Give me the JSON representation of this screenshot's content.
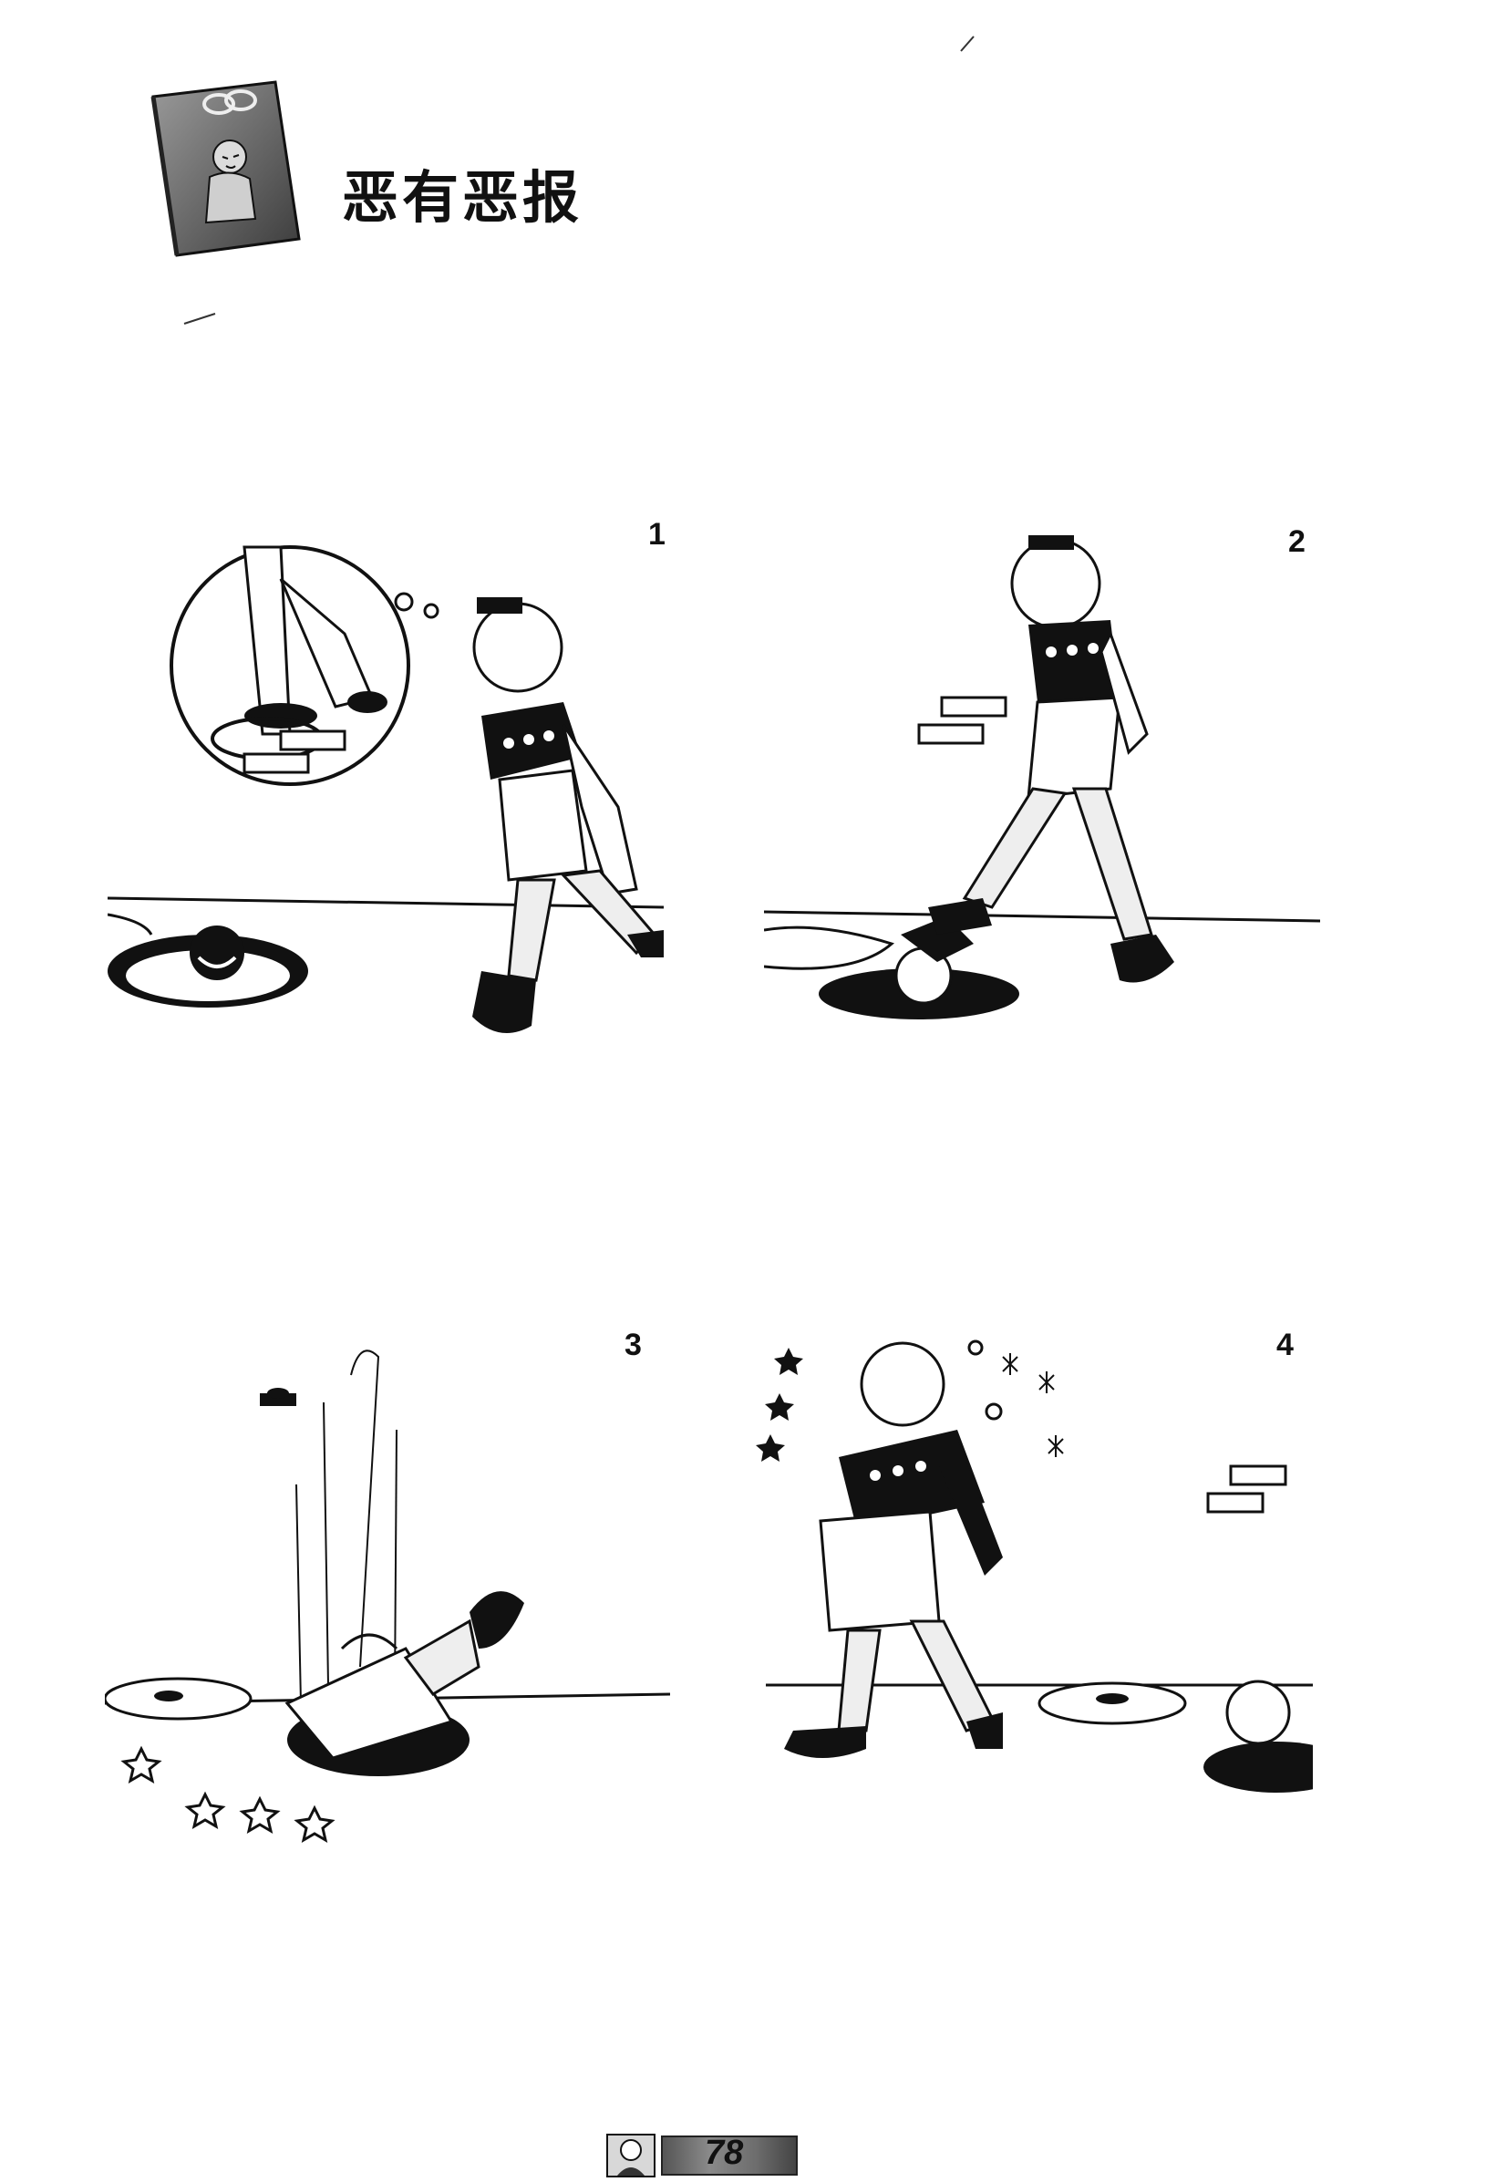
{
  "title": "恶有恶报",
  "panels": [
    {
      "number": "1"
    },
    {
      "number": "2"
    },
    {
      "number": "3"
    },
    {
      "number": "4"
    }
  ],
  "footer": {
    "page_number": "78"
  },
  "colors": {
    "ink": "#111111",
    "paper": "#ffffff",
    "shade": "#7a7a7a"
  }
}
